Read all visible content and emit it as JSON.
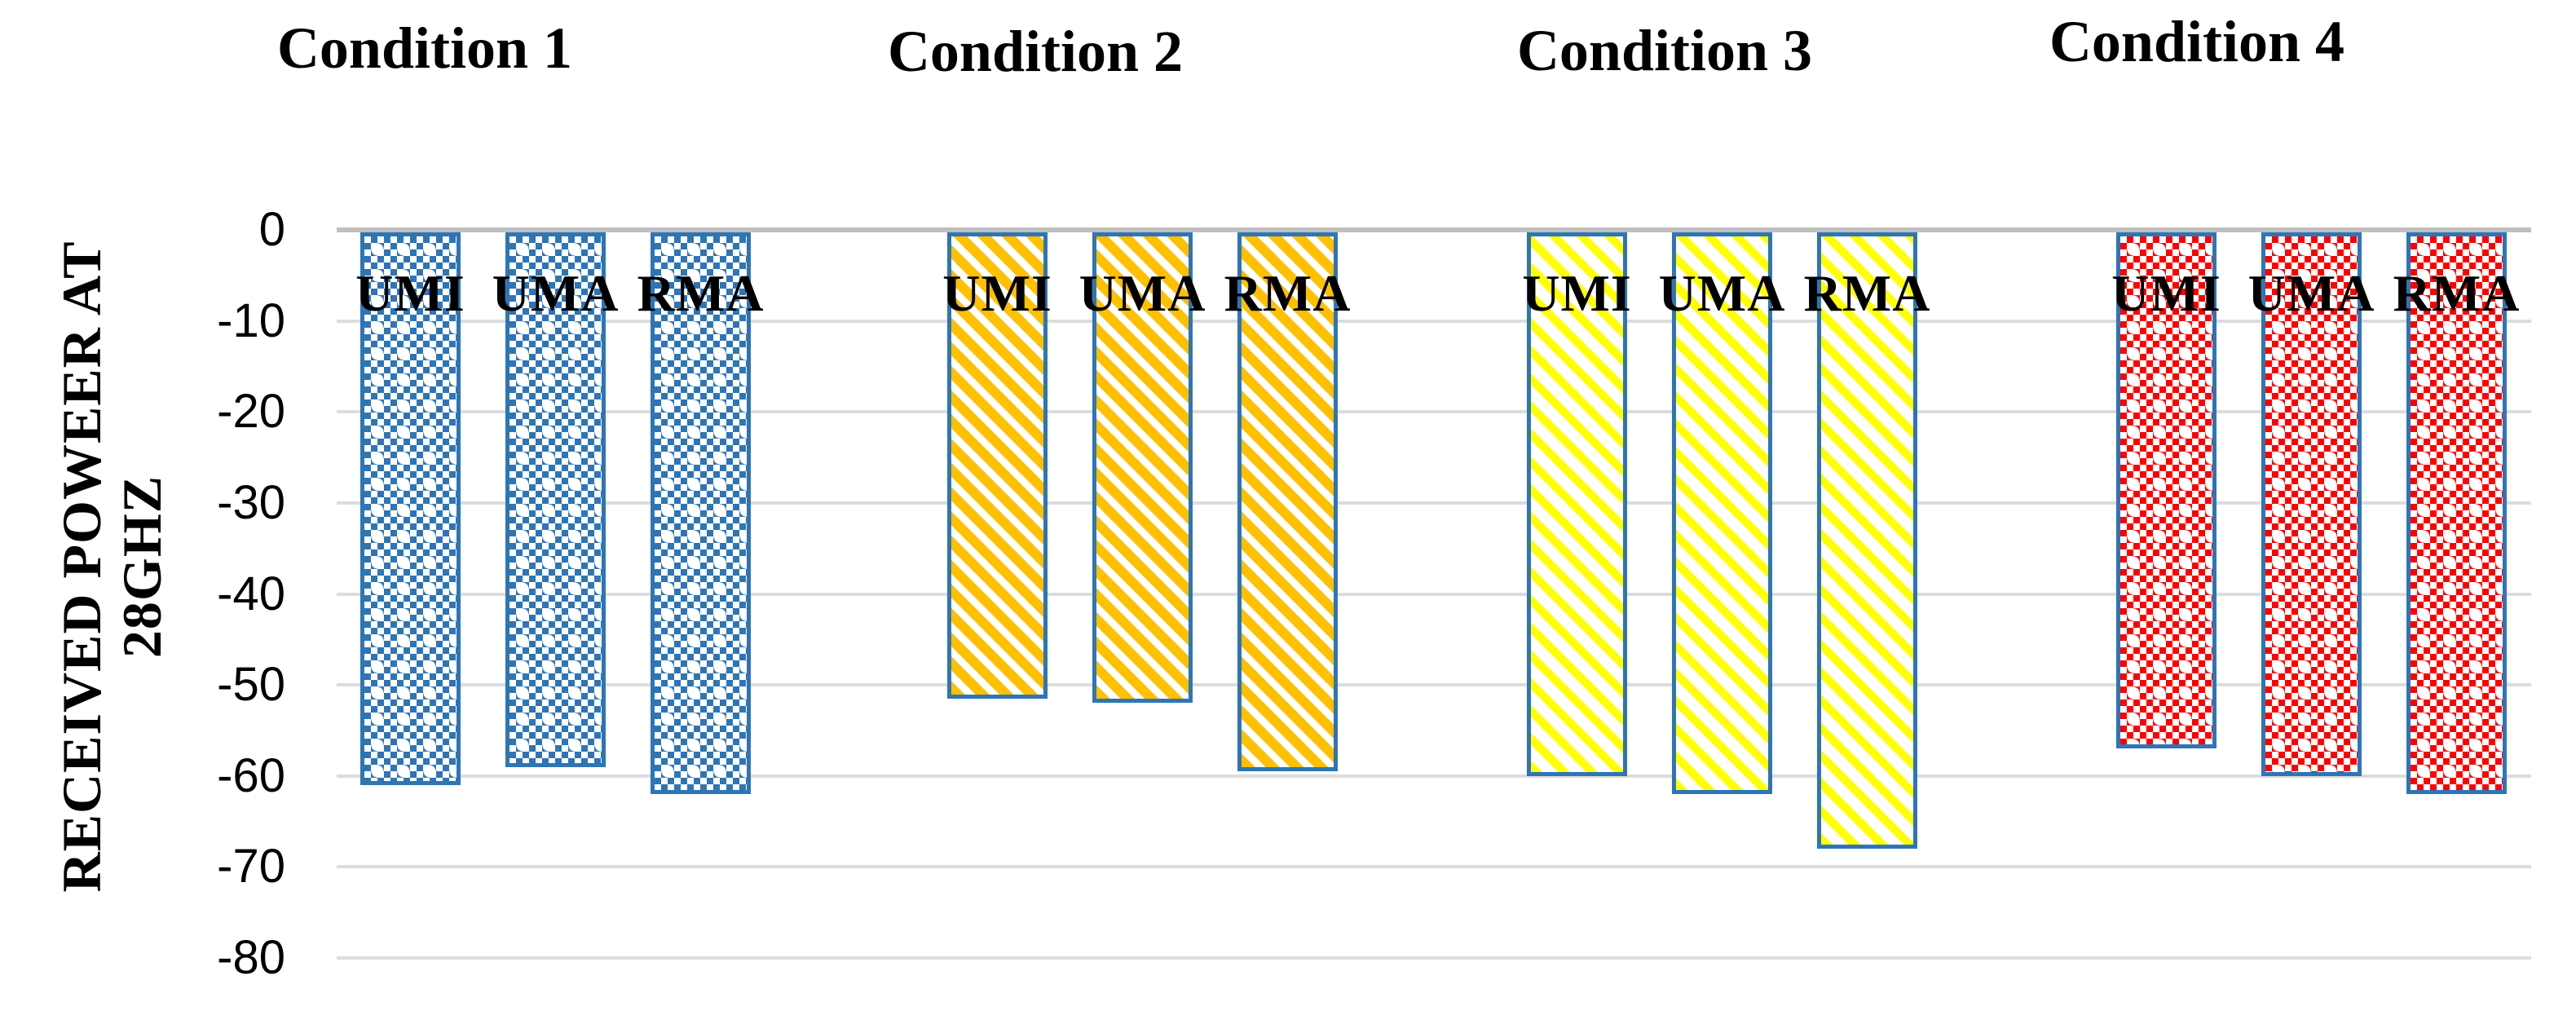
{
  "y_axis": {
    "title_line1": "RECEIVED POWEER AT",
    "title_line2": "28GHZ",
    "ticks": [
      "0",
      "-10",
      "-20",
      "-30",
      "-40",
      "-50",
      "-60",
      "-70",
      "-80"
    ]
  },
  "chart_data": {
    "type": "bar",
    "orientation": "vertical",
    "title": "",
    "ylabel": "RECEIVED POWEER AT 28GHZ",
    "xlabel": "",
    "ylim": [
      -80,
      0
    ],
    "ytick_step": 10,
    "grid": true,
    "legend": "none",
    "bar_outline_color": "#2E75B6",
    "axis_line_color": "#BFBFBF",
    "gridline_color": "#DCDCDC",
    "categories": [
      "UMI",
      "UMA",
      "RMA"
    ],
    "groups": [
      {
        "label": "Condition 1",
        "pattern": "checker",
        "color": "#2E75B6",
        "bars": [
          {
            "label": "UMI",
            "value": -61
          },
          {
            "label": "UMA",
            "value": -59
          },
          {
            "label": "RMA",
            "value": -62
          }
        ]
      },
      {
        "label": "Condition 2",
        "pattern": "diagonal-stripe",
        "color": "#FFC000",
        "bars": [
          {
            "label": "UMI",
            "value": -51.5
          },
          {
            "label": "UMA",
            "value": -52
          },
          {
            "label": "RMA",
            "value": -59.5
          }
        ]
      },
      {
        "label": "Condition 3",
        "pattern": "diagonal-stripe",
        "color": "#FFFF00",
        "bars": [
          {
            "label": "UMI",
            "value": -60
          },
          {
            "label": "UMA",
            "value": -62
          },
          {
            "label": "RMA",
            "value": -68
          }
        ]
      },
      {
        "label": "Condition 4",
        "pattern": "checker",
        "color": "#FF0000",
        "bars": [
          {
            "label": "UMI",
            "value": -57
          },
          {
            "label": "UMA",
            "value": -60
          },
          {
            "label": "RMA",
            "value": -62
          }
        ]
      }
    ]
  }
}
